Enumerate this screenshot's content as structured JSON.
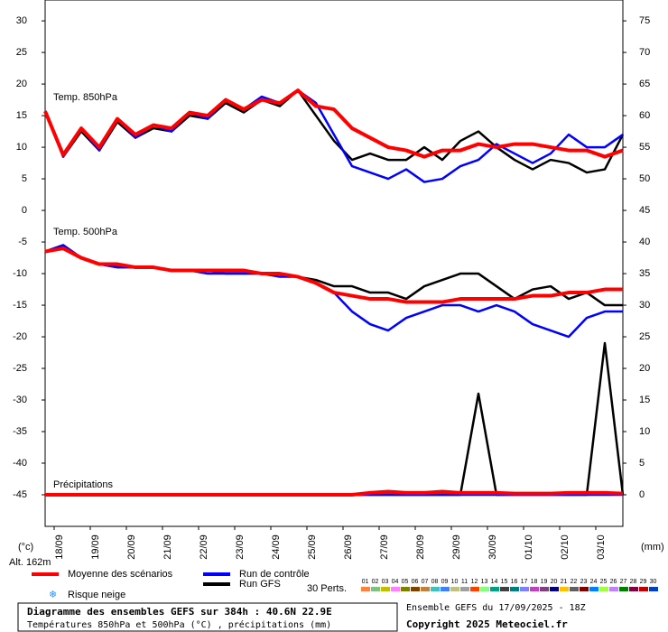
{
  "chart_data": {
    "type": "line",
    "title": "Diagramme des ensembles GEFS sur 384h : 40.6N 22.9E",
    "subtitle": "Températures 850hPa et 500hPa (°C) , précipitations (mm)",
    "run_info": "Ensemble GEFS du 17/09/2025 - 18Z",
    "copyright": "Copyright 2025 Meteociel.fr",
    "y_label": "(°c)",
    "y2_label": "(mm)",
    "altitude": "Alt. 162m",
    "panel_labels": [
      "Temp. 850hPa",
      "Temp. 500hPa",
      "Précipitations"
    ],
    "snow_label": "Risque neige",
    "perturbations_label": "30 Perts.",
    "x": [
      0,
      12,
      24,
      36,
      48,
      60,
      72,
      84,
      96,
      108,
      120,
      132,
      144,
      156,
      168,
      180,
      192,
      204,
      216,
      228,
      240,
      252,
      264,
      276,
      288,
      300,
      312,
      324,
      336,
      348,
      360,
      372,
      384
    ],
    "xlim": [
      0,
      384
    ],
    "xticks": [
      {
        "value": 6,
        "label": "18/09"
      },
      {
        "value": 30,
        "label": "19/09"
      },
      {
        "value": 54,
        "label": "20/09"
      },
      {
        "value": 78,
        "label": "21/09"
      },
      {
        "value": 102,
        "label": "22/09"
      },
      {
        "value": 126,
        "label": "23/09"
      },
      {
        "value": 150,
        "label": "24/09"
      },
      {
        "value": 174,
        "label": "25/09"
      },
      {
        "value": 198,
        "label": "26/09"
      },
      {
        "value": 222,
        "label": "27/09"
      },
      {
        "value": 246,
        "label": "28/09"
      },
      {
        "value": 270,
        "label": "29/09"
      },
      {
        "value": 294,
        "label": "30/09"
      },
      {
        "value": 318,
        "label": "01/10"
      },
      {
        "value": 342,
        "label": "02/10"
      },
      {
        "value": 366,
        "label": "03/10"
      }
    ],
    "ylim": [
      -50,
      33.3
    ],
    "yticks": [
      -45,
      -40,
      -35,
      -30,
      -25,
      -20,
      -15,
      -10,
      -5,
      0,
      5,
      10,
      15,
      20,
      25,
      30
    ],
    "y2lim": [
      -5,
      78.3
    ],
    "y2ticks": [
      0,
      5,
      10,
      15,
      20,
      25,
      30,
      35,
      40,
      45,
      50,
      55,
      60,
      65,
      70,
      75
    ],
    "series": [
      {
        "name": "Moyenne des scénarios",
        "color": "#ff0000",
        "values": [
          15.7,
          8.8,
          13,
          10,
          14.5,
          12,
          13.5,
          13,
          15.5,
          15,
          17.5,
          16,
          17.5,
          17,
          19,
          16.5,
          16,
          13,
          11.5,
          10,
          9.5,
          8.5,
          9.5,
          9.5,
          10.5,
          10,
          10.5,
          10.5,
          10,
          9.5,
          9.5,
          8.5,
          9.5
        ],
        "values_500": [
          -6.5,
          -6,
          -7.5,
          -8.5,
          -8.5,
          -9,
          -9,
          -9.5,
          -9.5,
          -9.5,
          -9.5,
          -9.5,
          -10,
          -10,
          -10.5,
          -11.5,
          -13,
          -13.5,
          -14,
          -14,
          -14.5,
          -14.5,
          -14.5,
          -14,
          -14,
          -14,
          -14,
          -13.5,
          -13.5,
          -13,
          -13,
          -12.5,
          -12.5
        ],
        "values_precip": [
          0,
          0,
          0,
          0,
          0,
          0,
          0,
          0,
          0,
          0,
          0,
          0,
          0,
          0,
          0,
          0,
          0,
          0,
          0.3,
          0.5,
          0.3,
          0.3,
          0.5,
          0.3,
          0.3,
          0.3,
          0.2,
          0.2,
          0.2,
          0.3,
          0.3,
          0.3,
          0.2
        ]
      },
      {
        "name": "Run de contrôle",
        "color": "#0000ff",
        "values": [
          15.7,
          8.5,
          13,
          9.5,
          14.5,
          11.5,
          13.5,
          12.5,
          15.5,
          14.5,
          17.5,
          16,
          18,
          17,
          19,
          17,
          12,
          7,
          6,
          5,
          6.5,
          4.5,
          5,
          7,
          8,
          10.5,
          9,
          7.5,
          9,
          12,
          10,
          10,
          12
        ],
        "values_500": [
          -6.5,
          -5.5,
          -7.5,
          -8.5,
          -9,
          -9,
          -9,
          -9.5,
          -9.5,
          -10,
          -10,
          -10,
          -10,
          -10.5,
          -10.5,
          -11.5,
          -13,
          -16,
          -18,
          -19,
          -17,
          -16,
          -15,
          -15,
          -16,
          -15,
          -16,
          -18,
          -19,
          -20,
          -17,
          -16,
          -16
        ],
        "values_precip": [
          0,
          0,
          0,
          0,
          0,
          0,
          0,
          0,
          0,
          0,
          0,
          0,
          0,
          0,
          0,
          0,
          0,
          0,
          0,
          0,
          0,
          0,
          0,
          0,
          0,
          0,
          0,
          0,
          0,
          0,
          0,
          0,
          0
        ]
      },
      {
        "name": "Run GFS",
        "color": "#000000",
        "values": [
          15.7,
          8.5,
          12.5,
          9.5,
          14,
          11.5,
          13,
          12.5,
          15,
          14.5,
          17,
          15.5,
          17.5,
          16.5,
          19,
          15,
          11,
          8,
          9,
          8,
          8,
          10,
          8,
          11,
          12.5,
          10,
          8,
          6.5,
          8,
          7.5,
          6,
          6.5,
          12
        ],
        "values_500": [
          -6.5,
          -5.5,
          -7.5,
          -8.5,
          -9,
          -9,
          -9,
          -9.5,
          -9.5,
          -9.5,
          -10,
          -10,
          -10,
          -10,
          -10.5,
          -11,
          -12,
          -12,
          -13,
          -13,
          -14,
          -12,
          -11,
          -10,
          -10,
          -12,
          -14,
          -12.5,
          -12,
          -14,
          -13,
          -15,
          -15
        ],
        "values_precip": [
          0,
          0,
          0,
          0,
          0,
          0,
          0,
          0,
          0,
          0,
          0,
          0,
          0,
          0,
          0,
          0,
          0,
          0,
          0,
          0,
          0,
          0,
          0,
          0,
          16,
          0,
          0,
          0,
          0,
          0,
          0,
          24,
          0
        ]
      }
    ],
    "perturbations": [
      {
        "name": "01",
        "color": "#ff8040"
      },
      {
        "name": "02",
        "color": "#80c080"
      },
      {
        "name": "03",
        "color": "#c0c000"
      },
      {
        "name": "04",
        "color": "#ff80ff"
      },
      {
        "name": "05",
        "color": "#808000"
      },
      {
        "name": "06",
        "color": "#804000"
      },
      {
        "name": "07",
        "color": "#c08040"
      },
      {
        "name": "08",
        "color": "#40c0c0"
      },
      {
        "name": "09",
        "color": "#4080ff"
      },
      {
        "name": "10",
        "color": "#c0c080"
      },
      {
        "name": "11",
        "color": "#a0a0a0"
      },
      {
        "name": "12",
        "color": "#ff4000"
      },
      {
        "name": "13",
        "color": "#80ff80"
      },
      {
        "name": "14",
        "color": "#00a080"
      },
      {
        "name": "15",
        "color": "#404040"
      },
      {
        "name": "16",
        "color": "#008080"
      },
      {
        "name": "17",
        "color": "#8080ff"
      },
      {
        "name": "18",
        "color": "#c040c0"
      },
      {
        "name": "19",
        "color": "#804080"
      },
      {
        "name": "20",
        "color": "#000080"
      },
      {
        "name": "21",
        "color": "#ffc000"
      },
      {
        "name": "22",
        "color": "#606060"
      },
      {
        "name": "23",
        "color": "#800000"
      },
      {
        "name": "24",
        "color": "#0080ff"
      },
      {
        "name": "25",
        "color": "#a0ff40"
      },
      {
        "name": "26",
        "color": "#c080ff"
      },
      {
        "name": "27",
        "color": "#008000"
      },
      {
        "name": "28",
        "color": "#800040"
      },
      {
        "name": "29",
        "color": "#c00000"
      },
      {
        "name": "30",
        "color": "#0040c0"
      }
    ]
  }
}
